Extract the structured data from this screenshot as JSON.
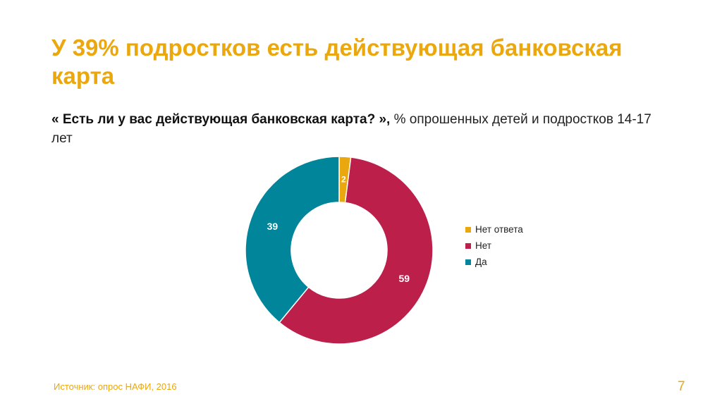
{
  "slide": {
    "title": "У 39% подростков есть действующая банковская карта",
    "subtitle_question": "« Есть ли у вас действующая банковская карта? »,",
    "subtitle_rest": " % опрошенных детей и подростков 14-17 лет",
    "source": "Источник: опрос НАФИ, 2016",
    "page_number": "7"
  },
  "chart_data": {
    "type": "pie",
    "variant": "donut",
    "categories": [
      "Нет ответа",
      "Нет",
      "Да"
    ],
    "values": [
      2,
      59,
      39
    ],
    "colors": [
      "#EBA80E",
      "#BC1F4A",
      "#00859B"
    ],
    "data_labels": [
      "2",
      "59",
      "39"
    ],
    "legend_position": "right",
    "start_angle": "top, clockwise"
  }
}
